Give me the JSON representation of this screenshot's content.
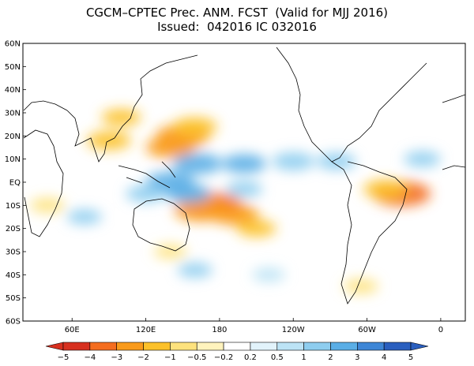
{
  "title": {
    "line1": "CGCM–CPTEC Prec. ANM. FCST  (Valid for MJJ 2016)",
    "line2": "Issued:  042016 IC 032016"
  },
  "map": {
    "lat_labels": [
      "60N",
      "50N",
      "40N",
      "30N",
      "20N",
      "10N",
      "EQ",
      "10S",
      "20S",
      "30S",
      "40S",
      "50S",
      "60S"
    ],
    "lon_labels": [
      "60E",
      "120E",
      "180",
      "120W",
      "60W",
      "0"
    ]
  },
  "colorbar": {
    "labels": [
      "−5",
      "−4",
      "−3",
      "−2",
      "−1",
      "−0.5",
      "−0.2",
      "0.2",
      "0.5",
      "1",
      "2",
      "3",
      "4",
      "5"
    ],
    "colors": [
      "#d7301f",
      "#f46d1f",
      "#f99a1b",
      "#fcc12a",
      "#fde27d",
      "#fff3bd",
      "#ffffff",
      "#e2f3fb",
      "#bce3f5",
      "#8ecdef",
      "#5aaee6",
      "#3e86d6",
      "#2a5fbf"
    ]
  },
  "anomalies": [
    {
      "lon": 150,
      "lat": 20,
      "v": -3
    },
    {
      "lon": 140,
      "lat": 15,
      "v": -2.5
    },
    {
      "lon": 160,
      "lat": 24,
      "v": -2
    },
    {
      "lon": 90,
      "lat": 18,
      "v": -2
    },
    {
      "lon": 100,
      "lat": 28,
      "v": -1.5
    },
    {
      "lon": 175,
      "lat": -10,
      "v": -3.5
    },
    {
      "lon": 192,
      "lat": -14,
      "v": -2.5
    },
    {
      "lon": 210,
      "lat": -20,
      "v": -1.5
    },
    {
      "lon": 165,
      "lat": -12,
      "v": -3
    },
    {
      "lon": 328,
      "lat": -5,
      "v": -3.5
    },
    {
      "lon": 315,
      "lat": -3,
      "v": -2
    },
    {
      "lon": 295,
      "lat": -45,
      "v": -1
    },
    {
      "lon": 40,
      "lat": -10,
      "v": -1
    },
    {
      "lon": 140,
      "lat": -30,
      "v": -0.8
    },
    {
      "lon": 162,
      "lat": 8,
      "v": 2.5
    },
    {
      "lon": 200,
      "lat": 8,
      "v": 2
    },
    {
      "lon": 240,
      "lat": 9,
      "v": 1.8
    },
    {
      "lon": 275,
      "lat": 9,
      "v": 1.5
    },
    {
      "lon": 140,
      "lat": 0,
      "v": 2.5
    },
    {
      "lon": 155,
      "lat": -5,
      "v": 2
    },
    {
      "lon": 120,
      "lat": -5,
      "v": 1.5
    },
    {
      "lon": 200,
      "lat": -3,
      "v": 1.2
    },
    {
      "lon": 345,
      "lat": 10,
      "v": 1.2
    },
    {
      "lon": 70,
      "lat": -15,
      "v": 1
    },
    {
      "lon": 220,
      "lat": -40,
      "v": 0.8
    },
    {
      "lon": 160,
      "lat": -38,
      "v": 1
    }
  ]
}
